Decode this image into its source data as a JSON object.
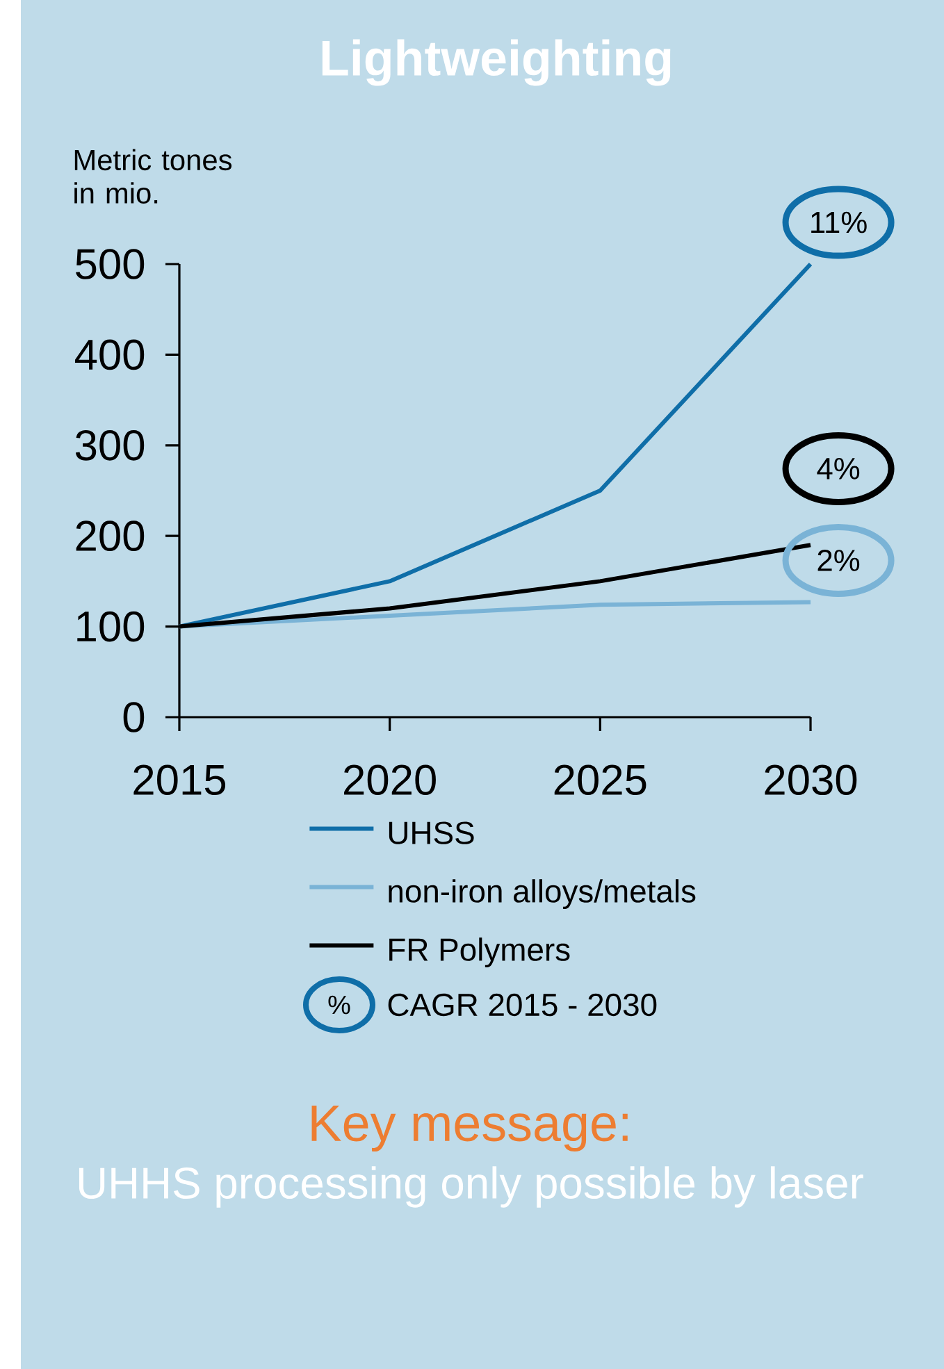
{
  "chart_data": {
    "type": "line",
    "title": "Lightweighting",
    "ylabel": "Metric tones in mio.",
    "x": [
      2015,
      2020,
      2025,
      2030
    ],
    "series": [
      {
        "name": "UHSS",
        "color": "#0f6ea8",
        "values": [
          100,
          150,
          250,
          500
        ]
      },
      {
        "name": "non-iron alloys/metals",
        "color": "#7ab3d6",
        "values": [
          100,
          112,
          124,
          127
        ]
      },
      {
        "name": "FR Polymers",
        "color": "#000000",
        "values": [
          100,
          120,
          150,
          190
        ]
      }
    ],
    "xlim": [
      2015,
      2030
    ],
    "xticks": [
      2015,
      2020,
      2025,
      2030
    ],
    "ylim": [
      0,
      500
    ],
    "yticks": [
      0,
      100,
      200,
      300,
      400,
      500
    ],
    "legend": "bottom",
    "annotations": [
      "11%",
      "2%",
      "4%",
      "%",
      "CAGR 2015 - 2030",
      "Key message:",
      "UHHS processing only possible by laser"
    ]
  }
}
